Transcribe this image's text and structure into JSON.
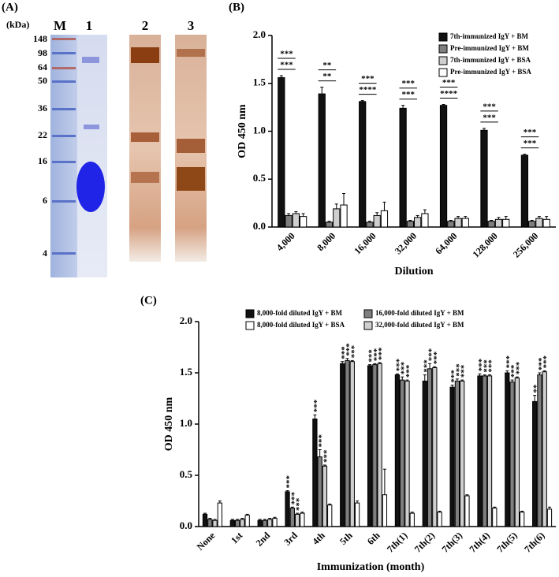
{
  "gel": {
    "label": "(A)",
    "unit": "(kDa)",
    "marker_label": "M",
    "lane_labels": [
      "1",
      "2",
      "3"
    ],
    "markers": [
      "148",
      "98",
      "64",
      "50",
      "36",
      "22",
      "16",
      "6",
      "4"
    ]
  },
  "chart_data": [
    {
      "type": "bar",
      "label": "(B)",
      "ylabel": "OD 450 nm",
      "xlabel": "Dilution",
      "categories": [
        "4,000",
        "8,000",
        "16,000",
        "32,000",
        "64,000",
        "128,000",
        "256,000"
      ],
      "series": [
        {
          "name": "7th-immunized IgY + BM",
          "color": "#111111",
          "values": [
            1.56,
            1.39,
            1.31,
            1.24,
            1.27,
            1.01,
            0.75
          ],
          "errors": [
            0.02,
            0.07,
            0.01,
            0.03,
            0.01,
            0.02,
            0.01
          ]
        },
        {
          "name": "Pre-immunized IgY + BM",
          "color": "#7f7f7f",
          "values": [
            0.12,
            0.05,
            0.05,
            0.06,
            0.06,
            0.06,
            0.06
          ],
          "errors": [
            0.02,
            0.01,
            0.01,
            0.01,
            0.01,
            0.01,
            0.01
          ]
        },
        {
          "name": "7th-immunized IgY + BSA",
          "color": "#cfcfcf",
          "values": [
            0.14,
            0.19,
            0.12,
            0.1,
            0.09,
            0.08,
            0.09
          ],
          "errors": [
            0.02,
            0.05,
            0.03,
            0.02,
            0.02,
            0.02,
            0.02
          ]
        },
        {
          "name": "Pre-immunized IgY + BSA",
          "color": "#ffffff",
          "values": [
            0.11,
            0.23,
            0.17,
            0.14,
            0.09,
            0.08,
            0.08
          ],
          "errors": [
            0.03,
            0.12,
            0.09,
            0.04,
            0.02,
            0.03,
            0.03
          ]
        }
      ],
      "significance": [
        [
          "***",
          "***"
        ],
        [
          "**",
          "**"
        ],
        [
          "***",
          "****"
        ],
        [
          "***",
          "***"
        ],
        [
          "***",
          "****"
        ],
        [
          "***",
          "***"
        ],
        [
          "***",
          "***"
        ]
      ],
      "ylim": [
        0,
        2
      ],
      "yticks": [
        {
          "value": 0,
          "label": "0.0"
        },
        {
          "value": 0.5,
          "label": "0.5"
        },
        {
          "value": 1,
          "label": "1.0"
        },
        {
          "value": 1.5,
          "label": "1.5"
        },
        {
          "value": 2,
          "label": "2.0"
        }
      ],
      "legend": "upper right"
    },
    {
      "type": "bar",
      "label": "(C)",
      "ylabel": "OD 450 nm",
      "xlabel": "Immunization (month)",
      "categories": [
        "None",
        "1st",
        "2nd",
        "3rd",
        "4th",
        "5th",
        "6th",
        "7th(1)",
        "7th(2)",
        "7th(3)",
        "7th(4)",
        "7th(5)",
        "7th(6)"
      ],
      "series": [
        {
          "name": "8,000-fold diluted IgY + BM",
          "color": "#111111",
          "values": [
            0.12,
            0.06,
            0.06,
            0.34,
            1.05,
            1.59,
            1.57,
            1.48,
            1.42,
            1.36,
            1.47,
            1.5,
            1.22
          ],
          "errors": [
            0.01,
            0.01,
            0.01,
            0.01,
            0.04,
            0.02,
            0.01,
            0.01,
            0.06,
            0.02,
            0.02,
            0.02,
            0.06
          ],
          "significance": [
            null,
            null,
            null,
            "***",
            "***",
            "***",
            "***",
            "***",
            "***",
            "***",
            "***",
            "***",
            "**"
          ]
        },
        {
          "name": "16,000-fold diluted IgY + BM",
          "color": "#7f7f7f",
          "values": [
            0.07,
            0.06,
            0.06,
            0.18,
            0.68,
            1.62,
            1.58,
            1.43,
            1.54,
            1.42,
            1.47,
            1.41,
            1.48
          ],
          "errors": [
            0.01,
            0.01,
            0.01,
            0.01,
            0.07,
            0.02,
            0.01,
            0.03,
            0.05,
            0.02,
            0.01,
            0.02,
            0.02
          ],
          "significance": [
            null,
            null,
            null,
            "***",
            "***",
            "***",
            "***",
            "***",
            "***",
            "***",
            "***",
            "***",
            "***"
          ]
        },
        {
          "name": "32,000-fold diluted IgY + BM",
          "color": "#cfcfcf",
          "values": [
            0.06,
            0.07,
            0.07,
            0.12,
            0.59,
            1.61,
            1.59,
            1.42,
            1.55,
            1.42,
            1.47,
            1.45,
            1.51
          ],
          "errors": [
            0.01,
            0.01,
            0.01,
            0.01,
            0.01,
            0.01,
            0.01,
            0.01,
            0.01,
            0.01,
            0.01,
            0.01,
            0.01
          ],
          "significance": [
            null,
            null,
            null,
            "***",
            "***",
            "***",
            "***",
            "***",
            "***",
            "***",
            "***",
            "***",
            "***"
          ]
        },
        {
          "name": "8,000-fold diluted IgY + BSA",
          "color": "#ffffff",
          "values": [
            0.23,
            0.11,
            0.08,
            0.13,
            0.21,
            0.23,
            0.31,
            0.13,
            0.14,
            0.3,
            0.18,
            0.14,
            0.17
          ],
          "errors": [
            0.02,
            0.01,
            0.01,
            0.01,
            0.01,
            0.02,
            0.25,
            0.01,
            0.01,
            0.01,
            0.01,
            0.01,
            0.02
          ]
        }
      ],
      "ylim": [
        0,
        2
      ],
      "yticks": [
        {
          "value": 0,
          "label": "0.0"
        },
        {
          "value": 0.5,
          "label": "0.5"
        },
        {
          "value": 1,
          "label": "1.0"
        },
        {
          "value": 1.5,
          "label": "1.5"
        },
        {
          "value": 2,
          "label": "2.0"
        }
      ],
      "legend": "upper center"
    }
  ]
}
